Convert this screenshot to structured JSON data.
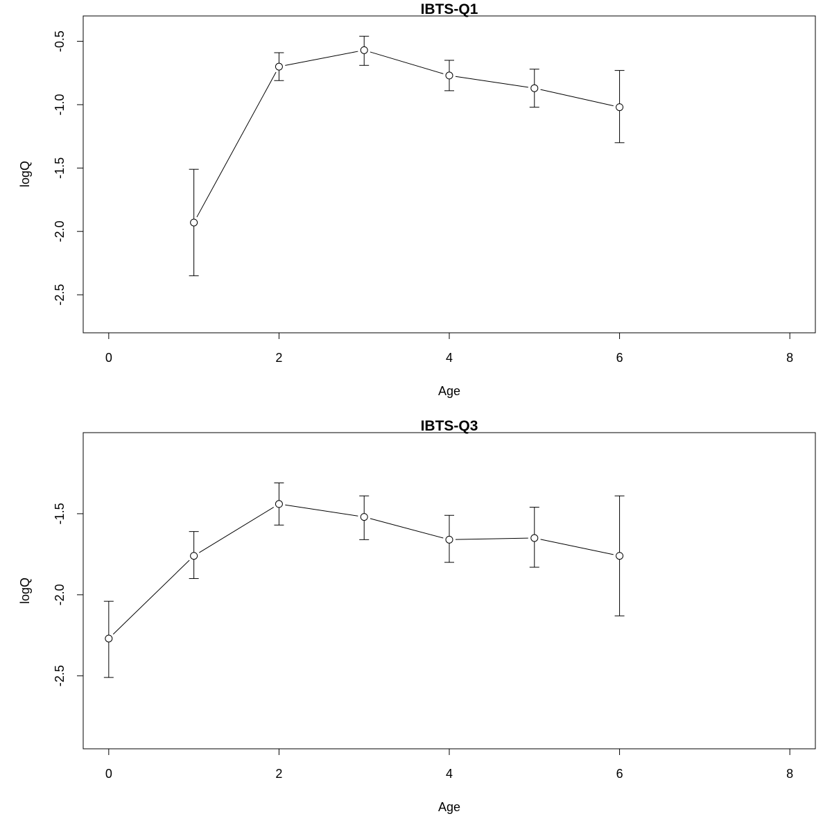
{
  "chart_data": [
    {
      "type": "line",
      "title": "IBTS-Q1",
      "xlabel": "Age",
      "ylabel": "logQ",
      "xlim": [
        -0.3,
        8.3
      ],
      "ylim": [
        -2.8,
        -0.3
      ],
      "xticks": [
        0,
        2,
        4,
        6,
        8
      ],
      "yticks": [
        -2.5,
        -2.0,
        -1.5,
        -1.0,
        -0.5
      ],
      "ytick_labels": [
        "-2.5",
        "-2.0",
        "-1.5",
        "-1.0",
        "-0.5"
      ],
      "series": [
        {
          "x": [
            1,
            2,
            3,
            4,
            5,
            6
          ],
          "y": [
            -1.93,
            -0.7,
            -0.57,
            -0.77,
            -0.87,
            -1.02
          ],
          "lower": [
            -2.35,
            -0.81,
            -0.69,
            -0.89,
            -1.02,
            -1.3
          ],
          "upper": [
            -1.51,
            -0.59,
            -0.46,
            -0.65,
            -0.72,
            -0.73
          ]
        }
      ]
    },
    {
      "type": "line",
      "title": "IBTS-Q3",
      "xlabel": "Age",
      "ylabel": "logQ",
      "xlim": [
        -0.3,
        8.3
      ],
      "ylim": [
        -2.95,
        -1.0
      ],
      "xticks": [
        0,
        2,
        4,
        6,
        8
      ],
      "yticks": [
        -2.5,
        -2.0,
        -1.5
      ],
      "ytick_labels": [
        "-2.5",
        "-2.0",
        "-1.5"
      ],
      "series": [
        {
          "x": [
            0,
            1,
            2,
            3,
            4,
            5,
            6
          ],
          "y": [
            -2.27,
            -1.76,
            -1.44,
            -1.52,
            -1.66,
            -1.65,
            -1.76
          ],
          "lower": [
            -2.51,
            -1.9,
            -1.57,
            -1.66,
            -1.8,
            -1.83,
            -2.13
          ],
          "upper": [
            -2.04,
            -1.61,
            -1.31,
            -1.39,
            -1.51,
            -1.46,
            -1.39
          ]
        }
      ]
    }
  ]
}
